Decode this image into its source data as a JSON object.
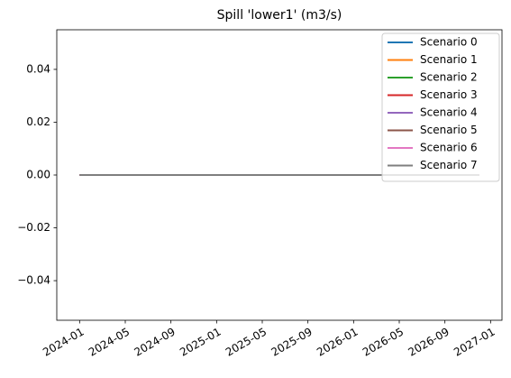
{
  "chart_data": {
    "type": "line",
    "title": "Spill 'lower1' (m3/s)",
    "x": [
      "2024-01",
      "2026-12"
    ],
    "series": [
      {
        "name": "Scenario 0",
        "color": "#1f77b4",
        "values": [
          0,
          0
        ]
      },
      {
        "name": "Scenario 1",
        "color": "#ff7f0e",
        "values": [
          0,
          0
        ]
      },
      {
        "name": "Scenario 2",
        "color": "#2ca02c",
        "values": [
          0,
          0
        ]
      },
      {
        "name": "Scenario 3",
        "color": "#d62728",
        "values": [
          0,
          0
        ]
      },
      {
        "name": "Scenario 4",
        "color": "#9467bd",
        "values": [
          0,
          0
        ]
      },
      {
        "name": "Scenario 5",
        "color": "#8c564b",
        "values": [
          0,
          0
        ]
      },
      {
        "name": "Scenario 6",
        "color": "#e377c2",
        "values": [
          0,
          0
        ]
      },
      {
        "name": "Scenario 7",
        "color": "#7f7f7f",
        "values": [
          0,
          0
        ]
      }
    ],
    "xlim": [
      "2023-11",
      "2027-02"
    ],
    "xticks": [
      "2024-01",
      "2024-05",
      "2024-09",
      "2025-01",
      "2025-05",
      "2025-09",
      "2026-01",
      "2026-05",
      "2026-09",
      "2027-01"
    ],
    "ylim": [
      -0.055,
      0.055
    ],
    "yticks": [
      {
        "value": -0.04,
        "label": "−0.04"
      },
      {
        "value": -0.02,
        "label": "−0.02"
      },
      {
        "value": 0,
        "label": "0.00"
      },
      0.02,
      0.04
    ],
    "legend": "upper right",
    "grid": false
  }
}
